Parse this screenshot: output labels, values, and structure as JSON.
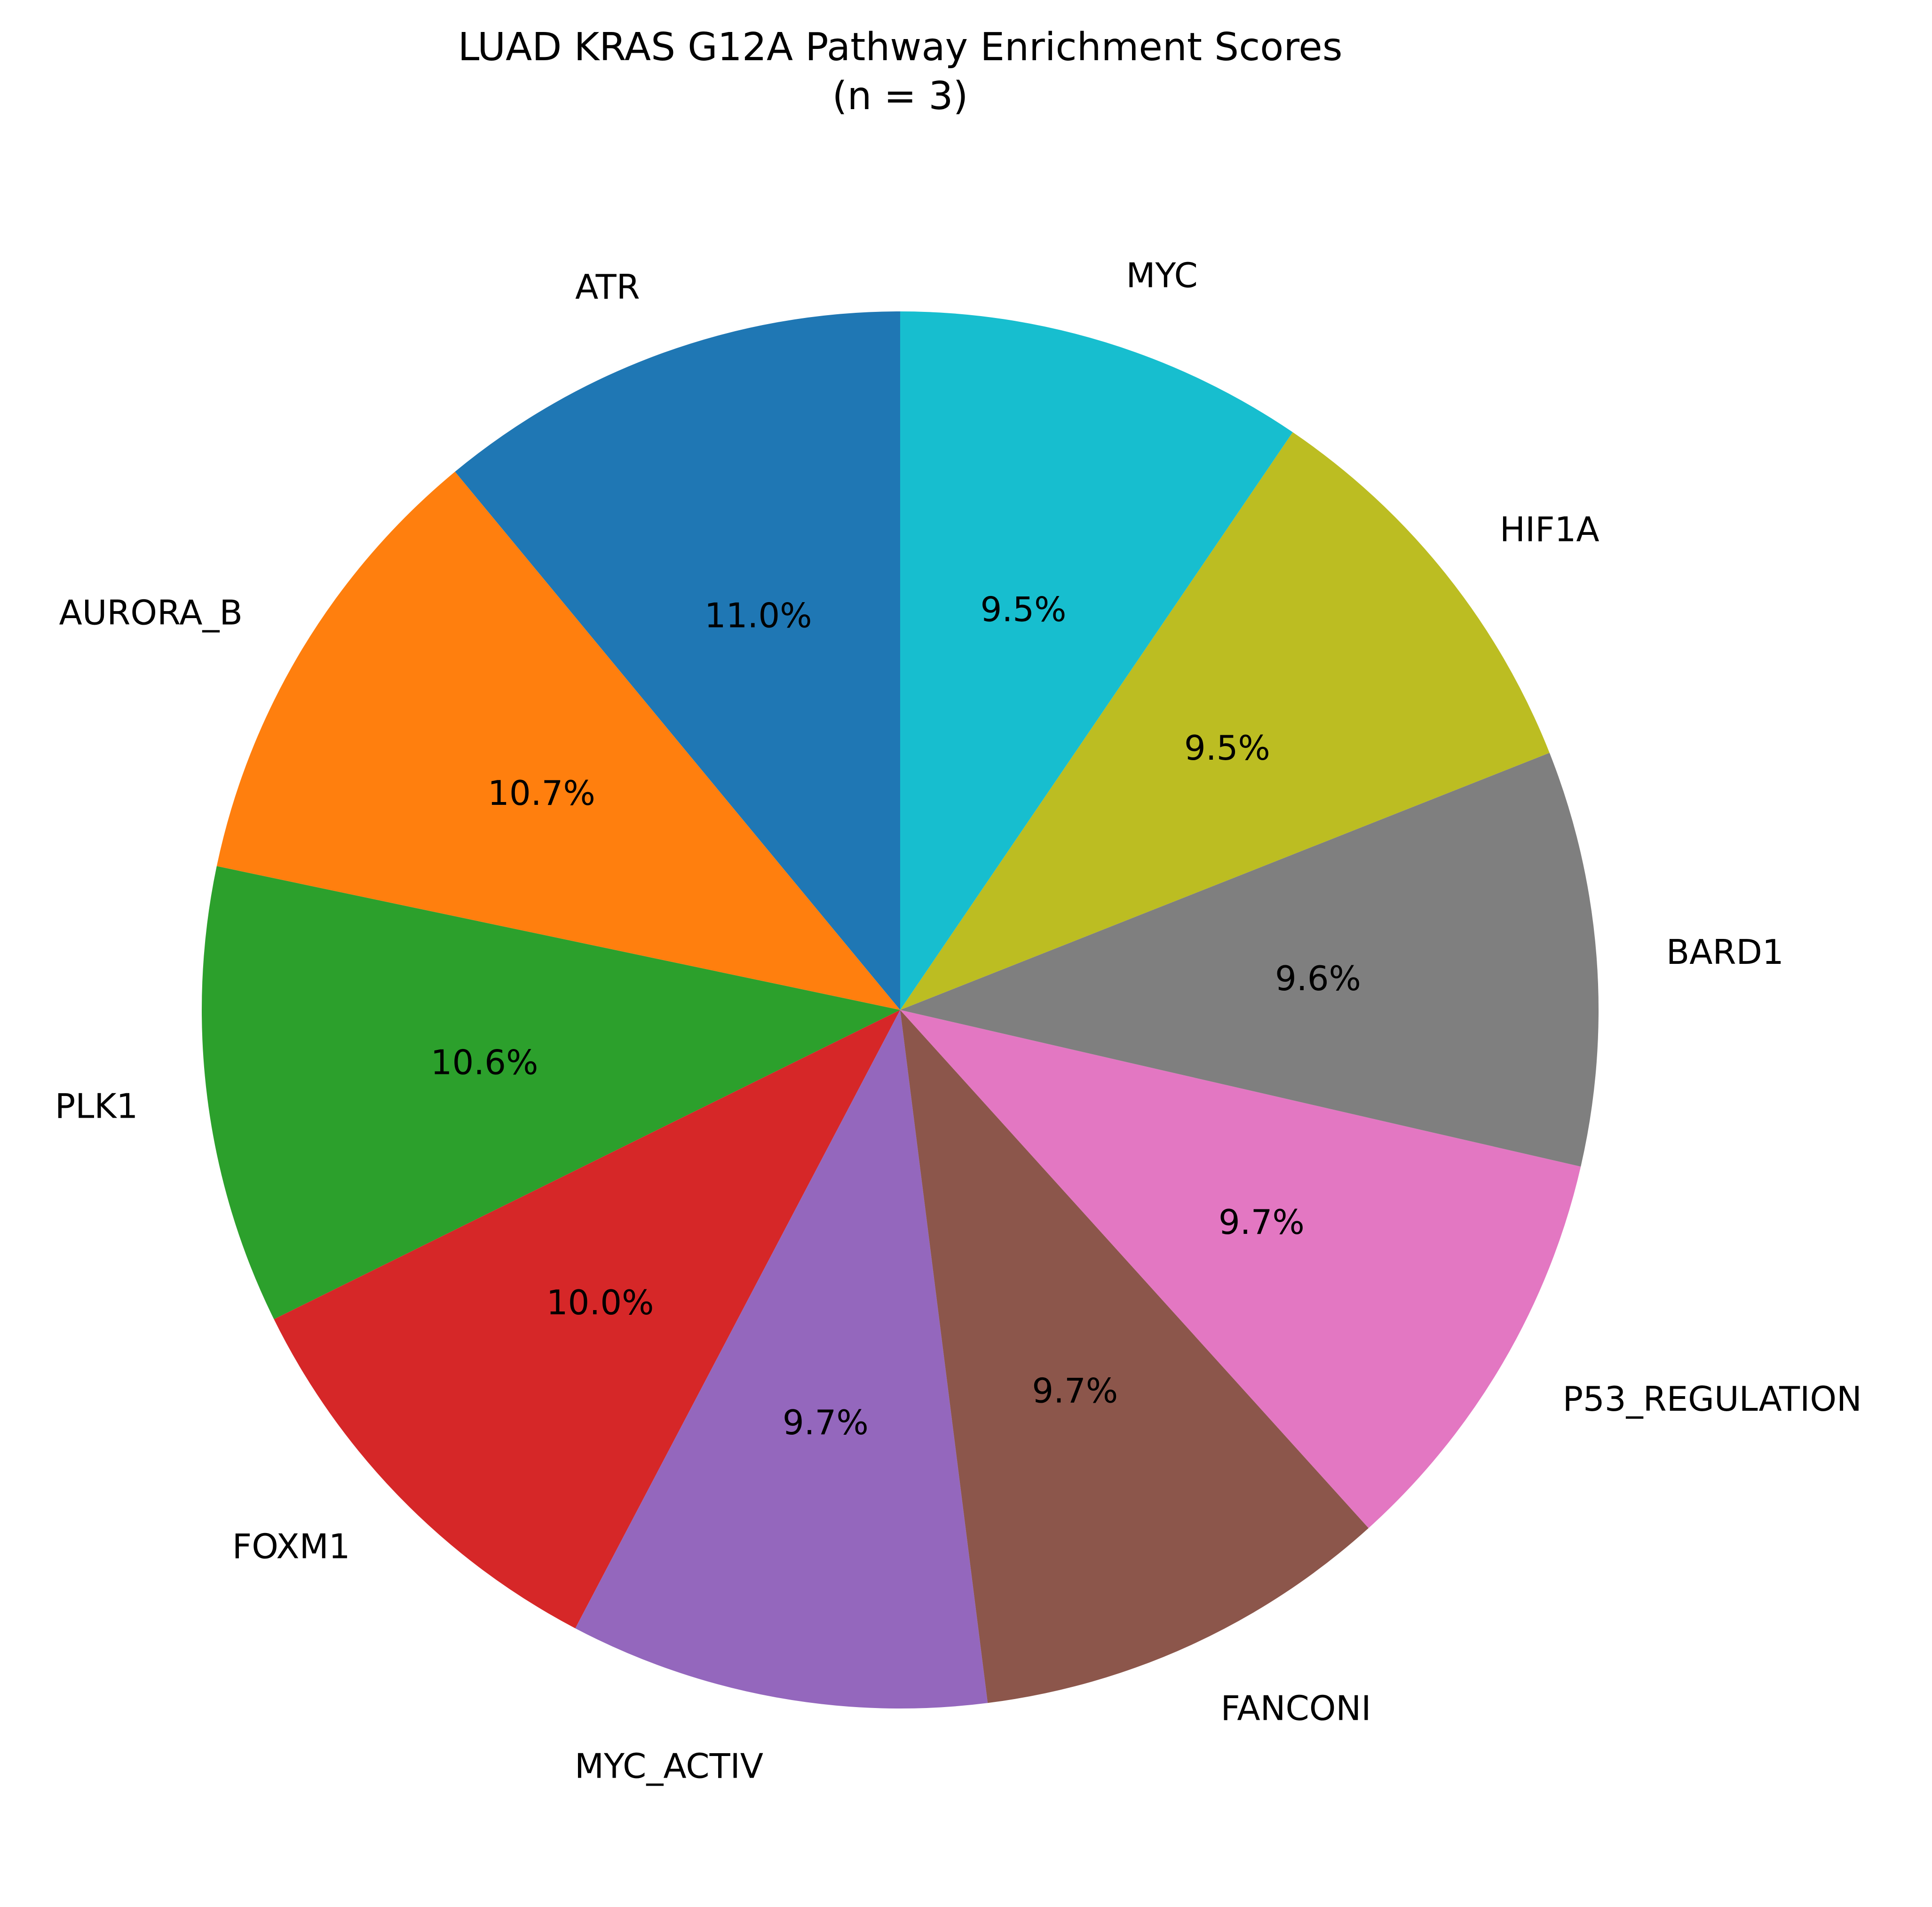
{
  "chart_data": {
    "type": "pie",
    "title": "LUAD KRAS G12A Pathway Enrichment Scores",
    "subtitle": "(n = 3)",
    "start_angle_deg": 90,
    "direction": "counterclockwise",
    "slices": [
      {
        "label": "ATR",
        "value": 11.0,
        "pct_label": "11.0%",
        "color": "#1f77b4"
      },
      {
        "label": "AURORA_B",
        "value": 10.7,
        "pct_label": "10.7%",
        "color": "#ff7f0e"
      },
      {
        "label": "PLK1",
        "value": 10.6,
        "pct_label": "10.6%",
        "color": "#2ca02c"
      },
      {
        "label": "FOXM1",
        "value": 10.0,
        "pct_label": "10.0%",
        "color": "#d62728"
      },
      {
        "label": "MYC_ACTIV",
        "value": 9.7,
        "pct_label": "9.7%",
        "color": "#9467bd"
      },
      {
        "label": "FANCONI",
        "value": 9.7,
        "pct_label": "9.7%",
        "color": "#8c564b"
      },
      {
        "label": "P53_REGULATION",
        "value": 9.7,
        "pct_label": "9.7%",
        "color": "#e377c2"
      },
      {
        "label": "BARD1",
        "value": 9.6,
        "pct_label": "9.6%",
        "color": "#7f7f7f"
      },
      {
        "label": "HIF1A",
        "value": 9.5,
        "pct_label": "9.5%",
        "color": "#bcbd22"
      },
      {
        "label": "MYC",
        "value": 9.5,
        "pct_label": "9.5%",
        "color": "#17becf"
      }
    ]
  }
}
